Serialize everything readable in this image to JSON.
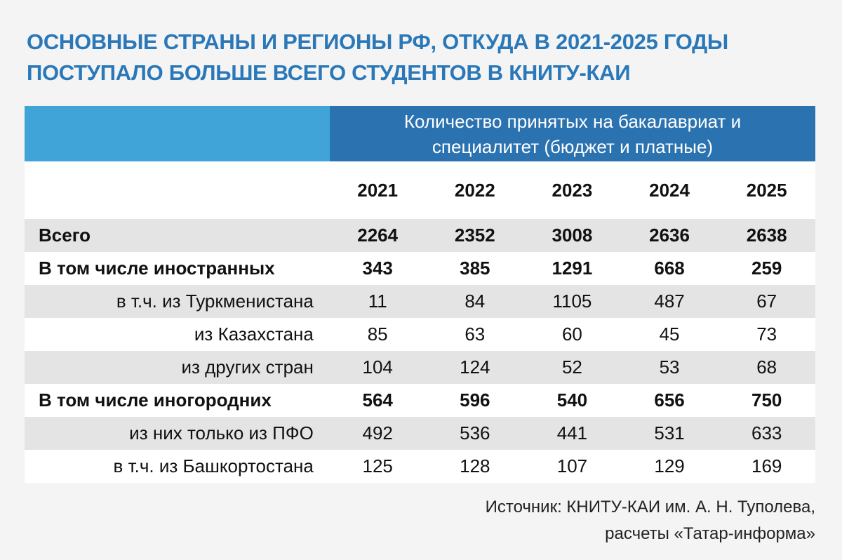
{
  "title": [
    "ОСНОВНЫЕ СТРАНЫ И РЕГИОНЫ РФ, ОТКУДА В 2021-2025 ГОДЫ",
    "ПОСТУПАЛО БОЛЬШЕ ВСЕГО СТУДЕНТОВ В КНИТУ-КАИ"
  ],
  "colors": {
    "title": "#2a78b8",
    "header_light": "#40a4d8",
    "header_dark": "#2a72b0",
    "row_gray": "#e4e4e4"
  },
  "chart_data": {
    "type": "table",
    "header": [
      "Количество принятых на бакалавриат и",
      "специалитет (бюджет и платные)"
    ],
    "columns": [
      "2021",
      "2022",
      "2023",
      "2024",
      "2025"
    ],
    "rows": [
      {
        "label": "Всего",
        "values": [
          "2264",
          "2352",
          "3008",
          "2636",
          "2638"
        ],
        "bold": true,
        "indent": false
      },
      {
        "label": "В том числе иностранных",
        "values": [
          "343",
          "385",
          "1291",
          "668",
          "259"
        ],
        "bold": true,
        "indent": false
      },
      {
        "label": "в т.ч. из Туркменистана",
        "values": [
          "11",
          "84",
          "1105",
          "487",
          "67"
        ],
        "bold": false,
        "indent": true
      },
      {
        "label": "из Казахстана",
        "values": [
          "85",
          "63",
          "60",
          "45",
          "73"
        ],
        "bold": false,
        "indent": true
      },
      {
        "label": "из других стран",
        "values": [
          "104",
          "124",
          "52",
          "53",
          "68"
        ],
        "bold": false,
        "indent": true
      },
      {
        "label": "В том числе иногородних",
        "values": [
          "564",
          "596",
          "540",
          "656",
          "750"
        ],
        "bold": true,
        "indent": false
      },
      {
        "label": "из них только из ПФО",
        "values": [
          "492",
          "536",
          "441",
          "531",
          "633"
        ],
        "bold": false,
        "indent": true
      },
      {
        "label": "в т.ч. из Башкортостана",
        "values": [
          "125",
          "128",
          "107",
          "129",
          "169"
        ],
        "bold": false,
        "indent": true
      }
    ]
  },
  "source": [
    "Источник: КНИТУ-КАИ им. А. Н. Туполева,",
    "расчеты «Татар-информа»"
  ]
}
